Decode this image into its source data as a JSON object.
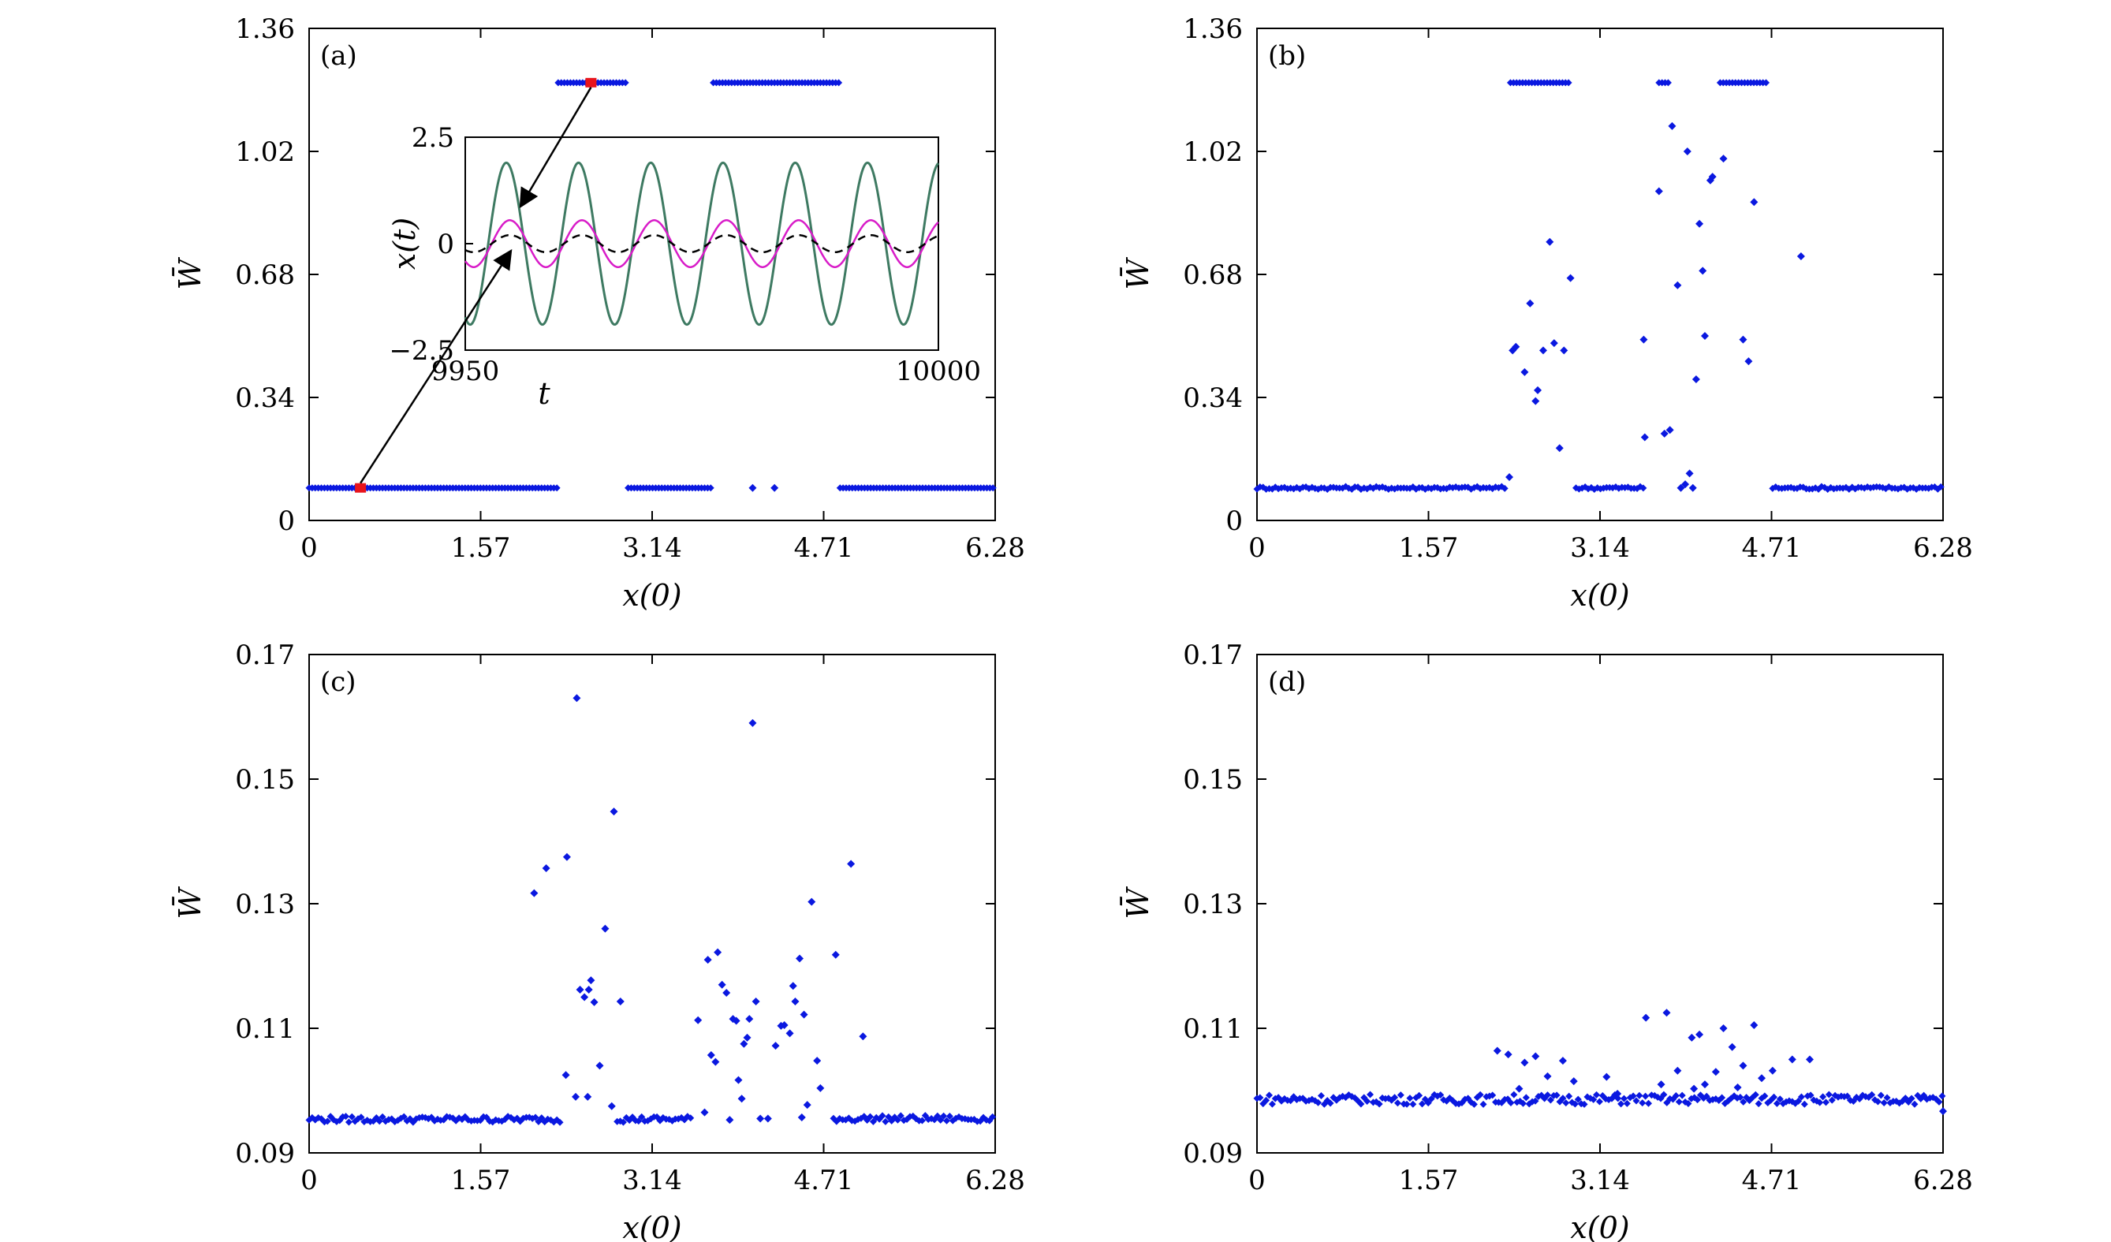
{
  "figure": {
    "colors": {
      "points": "#0a18e0",
      "highlight": "#e8141c",
      "axis": "#000000",
      "green": "#3e7a62",
      "magenta": "#d81cc8",
      "dashed": "#000000"
    }
  },
  "chart_data": [
    {
      "id": "a",
      "type": "scatter",
      "panel_label": "(a)",
      "xlabel": "x(0)",
      "ylabel": "W̄",
      "xlim": [
        0,
        6.28
      ],
      "ylim": [
        0,
        1.36
      ],
      "xticks": [
        "0",
        "1.57",
        "3.14",
        "4.71",
        "6.28"
      ],
      "yticks": [
        "0",
        "0.34",
        "0.68",
        "1.02",
        "1.36"
      ],
      "bands": [
        {
          "y": 0.09,
          "x_from": 0.0,
          "x_to": 2.28
        },
        {
          "y": 0.09,
          "x_from": 2.92,
          "x_to": 3.7
        },
        {
          "y": 0.09,
          "x_from": 4.86,
          "x_to": 6.28
        },
        {
          "y": 1.21,
          "x_from": 2.28,
          "x_to": 2.92
        },
        {
          "y": 1.21,
          "x_from": 3.7,
          "x_to": 4.86
        }
      ],
      "points": [
        [
          4.06,
          0.09
        ],
        [
          4.26,
          0.09
        ]
      ],
      "highlights": [
        [
          0.47,
          0.09
        ],
        [
          2.58,
          1.21
        ]
      ],
      "inset": {
        "type": "line",
        "xlabel": "t",
        "ylabel": "x(t)",
        "xlim": [
          9950,
          10000
        ],
        "ylim": [
          -2.5,
          2.5
        ],
        "xticks": [
          "9950",
          "10000"
        ],
        "yticks": [
          "2.5",
          "0",
          "−2.5"
        ],
        "series": [
          {
            "style": "green",
            "amplitude": 1.9,
            "cycles": 6.55,
            "phase": -2.0
          },
          {
            "style": "magenta",
            "amplitude": 0.55,
            "cycles": 6.55,
            "phase": -2.3
          },
          {
            "style": "dashed",
            "amplitude": 0.2,
            "cycles": 6.55,
            "phase": -2.3
          }
        ]
      }
    },
    {
      "id": "b",
      "type": "scatter",
      "panel_label": "(b)",
      "xlabel": "x(0)",
      "ylabel": "W̄",
      "xlim": [
        0,
        6.28
      ],
      "ylim": [
        0,
        1.36
      ],
      "xticks": [
        "0",
        "1.57",
        "3.14",
        "4.71",
        "6.28"
      ],
      "yticks": [
        "0",
        "0.34",
        "0.68",
        "1.02",
        "1.36"
      ],
      "bands": [
        {
          "y": 0.09,
          "x_from": 0.0,
          "x_to": 2.28,
          "jitter": 0.004
        },
        {
          "y": 0.09,
          "x_from": 2.92,
          "x_to": 3.55,
          "jitter": 0.004
        },
        {
          "y": 0.09,
          "x_from": 4.72,
          "x_to": 6.28,
          "jitter": 0.004
        },
        {
          "y": 1.21,
          "x_from": 2.32,
          "x_to": 2.86
        },
        {
          "y": 1.21,
          "x_from": 3.68,
          "x_to": 3.78
        },
        {
          "y": 1.21,
          "x_from": 4.24,
          "x_to": 4.66
        }
      ],
      "points": [
        [
          2.31,
          0.12
        ],
        [
          2.34,
          0.47
        ],
        [
          2.37,
          0.48
        ],
        [
          2.45,
          0.41
        ],
        [
          2.5,
          0.6
        ],
        [
          2.55,
          0.33
        ],
        [
          2.57,
          0.36
        ],
        [
          2.62,
          0.47
        ],
        [
          2.68,
          0.77
        ],
        [
          2.72,
          0.49
        ],
        [
          2.77,
          0.2
        ],
        [
          2.81,
          0.47
        ],
        [
          2.87,
          0.67
        ],
        [
          3.54,
          0.5
        ],
        [
          3.55,
          0.23
        ],
        [
          3.68,
          0.91
        ],
        [
          3.73,
          0.24
        ],
        [
          3.78,
          0.25
        ],
        [
          3.8,
          1.09
        ],
        [
          3.85,
          0.65
        ],
        [
          3.88,
          0.09
        ],
        [
          3.92,
          0.1
        ],
        [
          3.94,
          1.02
        ],
        [
          3.96,
          0.13
        ],
        [
          3.99,
          0.09
        ],
        [
          4.02,
          0.39
        ],
        [
          4.05,
          0.82
        ],
        [
          4.08,
          0.69
        ],
        [
          4.1,
          0.51
        ],
        [
          4.15,
          0.94
        ],
        [
          4.17,
          0.95
        ],
        [
          4.27,
          1.0
        ],
        [
          4.45,
          0.5
        ],
        [
          4.5,
          0.44
        ],
        [
          4.55,
          0.88
        ],
        [
          4.98,
          0.73
        ]
      ]
    },
    {
      "id": "c",
      "type": "scatter",
      "panel_label": "(c)",
      "xlabel": "x(0)",
      "ylabel": "W̄",
      "xlim": [
        0,
        6.28
      ],
      "ylim": [
        0.09,
        0.17
      ],
      "xticks": [
        "0",
        "1.57",
        "3.14",
        "4.71",
        "6.28"
      ],
      "yticks": [
        "0.09",
        "0.11",
        "0.13",
        "0.15",
        "0.17"
      ],
      "bands": [
        {
          "y": 0.0954,
          "x_from": 0.0,
          "x_to": 2.3,
          "jitter": 0.0005
        },
        {
          "y": 0.0954,
          "x_from": 2.82,
          "x_to": 3.5,
          "jitter": 0.0005
        },
        {
          "y": 0.0955,
          "x_from": 4.8,
          "x_to": 6.28,
          "jitter": 0.0005
        }
      ],
      "points": [
        [
          2.06,
          0.1317
        ],
        [
          2.17,
          0.1357
        ],
        [
          2.35,
          0.1025
        ],
        [
          2.36,
          0.1375
        ],
        [
          2.44,
          0.099
        ],
        [
          2.45,
          0.163
        ],
        [
          2.48,
          0.1162
        ],
        [
          2.52,
          0.115
        ],
        [
          2.55,
          0.099
        ],
        [
          2.56,
          0.1162
        ],
        [
          2.58,
          0.1177
        ],
        [
          2.61,
          0.1142
        ],
        [
          2.66,
          0.104
        ],
        [
          2.71,
          0.126
        ],
        [
          2.77,
          0.0975
        ],
        [
          2.79,
          0.1448
        ],
        [
          2.85,
          0.1143
        ],
        [
          3.56,
          0.1113
        ],
        [
          3.62,
          0.0965
        ],
        [
          3.65,
          0.121
        ],
        [
          3.68,
          0.1057
        ],
        [
          3.72,
          0.1046
        ],
        [
          3.74,
          0.1222
        ],
        [
          3.78,
          0.117
        ],
        [
          3.82,
          0.1157
        ],
        [
          3.85,
          0.0953
        ],
        [
          3.88,
          0.1115
        ],
        [
          3.91,
          0.1112
        ],
        [
          3.93,
          0.1017
        ],
        [
          3.96,
          0.0987
        ],
        [
          3.98,
          0.1075
        ],
        [
          4.01,
          0.1085
        ],
        [
          4.03,
          0.1115
        ],
        [
          4.06,
          0.159
        ],
        [
          4.09,
          0.1143
        ],
        [
          4.13,
          0.0955
        ],
        [
          4.2,
          0.0955
        ],
        [
          4.27,
          0.1072
        ],
        [
          4.32,
          0.1104
        ],
        [
          4.35,
          0.1105
        ],
        [
          4.4,
          0.1092
        ],
        [
          4.43,
          0.1168
        ],
        [
          4.45,
          0.1143
        ],
        [
          4.49,
          0.1212
        ],
        [
          4.51,
          0.0957
        ],
        [
          4.53,
          0.1122
        ],
        [
          4.56,
          0.0977
        ],
        [
          4.6,
          0.1303
        ],
        [
          4.65,
          0.1048
        ],
        [
          4.68,
          0.1004
        ],
        [
          4.82,
          0.1218
        ],
        [
          4.96,
          0.1364
        ],
        [
          5.07,
          0.1087
        ]
      ]
    },
    {
      "id": "d",
      "type": "scatter",
      "panel_label": "(d)",
      "xlabel": "x(0)",
      "ylabel": "W̄",
      "xlim": [
        0,
        6.28
      ],
      "ylim": [
        0.09,
        0.17
      ],
      "xticks": [
        "0",
        "1.57",
        "3.14",
        "4.71",
        "6.28"
      ],
      "yticks": [
        "0.09",
        "0.11",
        "0.13",
        "0.15",
        "0.17"
      ],
      "bands": [
        {
          "y": 0.0986,
          "x_from": 0.0,
          "x_to": 6.28,
          "jitter": 0.0008
        }
      ],
      "points": [
        [
          6.28,
          0.0967
        ],
        [
          2.2,
          0.1064
        ],
        [
          2.3,
          0.1058
        ],
        [
          2.45,
          0.1045
        ],
        [
          2.55,
          0.1055
        ],
        [
          2.66,
          0.1023
        ],
        [
          2.8,
          0.1048
        ],
        [
          2.9,
          0.1015
        ],
        [
          3.2,
          0.1022
        ],
        [
          3.56,
          0.1117
        ],
        [
          3.75,
          0.1125
        ],
        [
          3.85,
          0.1032
        ],
        [
          3.98,
          0.1085
        ],
        [
          4.05,
          0.109
        ],
        [
          4.1,
          0.101
        ],
        [
          4.2,
          0.103
        ],
        [
          4.27,
          0.11
        ],
        [
          4.35,
          0.107
        ],
        [
          4.45,
          0.104
        ],
        [
          4.55,
          0.1105
        ],
        [
          4.62,
          0.102
        ],
        [
          4.72,
          0.1032
        ],
        [
          4.9,
          0.105
        ],
        [
          5.06,
          0.105
        ],
        [
          2.4,
          0.1003
        ],
        [
          3.3,
          0.0995
        ],
        [
          3.7,
          0.101
        ],
        [
          4.0,
          0.1003
        ],
        [
          4.4,
          0.1005
        ]
      ]
    }
  ]
}
